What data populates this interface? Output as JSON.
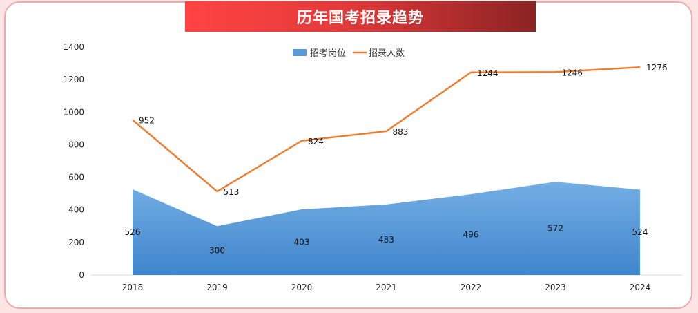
{
  "chart_data": {
    "type": "area",
    "title": "历年国考招录趋势",
    "categories": [
      "2018",
      "2019",
      "2020",
      "2021",
      "2022",
      "2023",
      "2024"
    ],
    "series": [
      {
        "name": "招考岗位",
        "type": "area",
        "values": [
          526,
          300,
          403,
          433,
          496,
          572,
          524
        ],
        "color": "#4a8fd6"
      },
      {
        "name": "招录人数",
        "type": "line",
        "values": [
          952,
          513,
          824,
          883,
          1244,
          1246,
          1276
        ],
        "color": "#ed7d31"
      }
    ],
    "ylim": [
      0,
      1400
    ],
    "yticks": [
      0,
      200,
      400,
      600,
      800,
      1000,
      1200,
      1400
    ],
    "legend": "top-center",
    "grid": false
  }
}
